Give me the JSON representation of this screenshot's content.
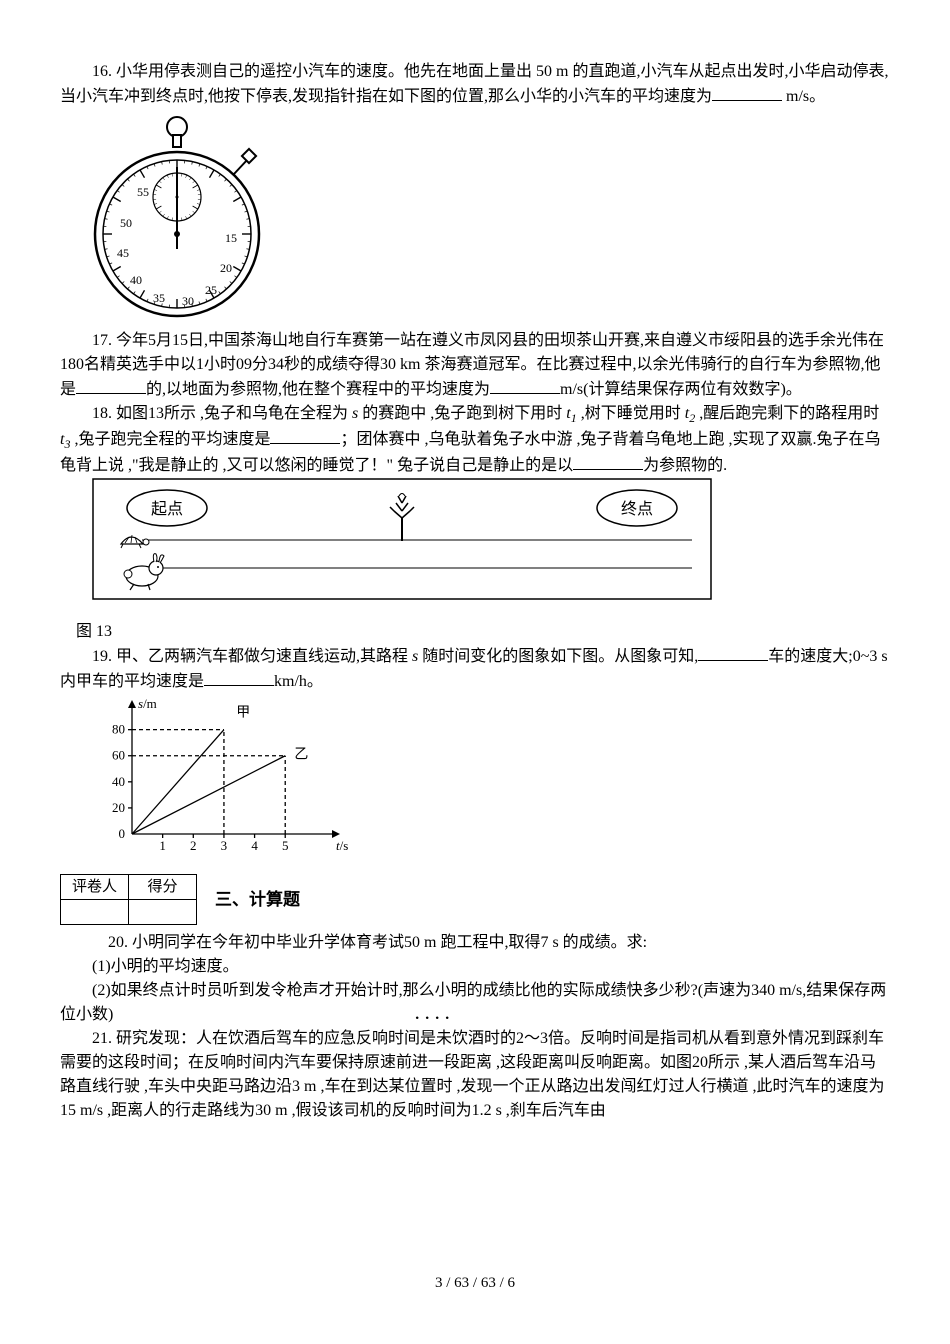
{
  "q16": {
    "text1": "16. 小华用停表测自己的遥控小汽车的速度。他先在地面上量出 50 m 的直跑道,小汽车从起点出发时,小华启动停表,当小汽车冲到终点时,他按下停表,发现指针指在如下图的位置,那么小华的小汽车的平均速度为",
    "text2": "m/s。"
  },
  "stopwatch": {
    "bg": "#ffffff",
    "stroke": "#000000",
    "small_ticks": [
      "55",
      "50",
      "45",
      "40",
      "35",
      "30",
      "25",
      "20",
      "15"
    ],
    "font_size": 12
  },
  "q17": {
    "text1": "17. 今年5月15日,中国茶海山地自行车赛第一站在遵义市凤冈县的田坝茶山开赛,来自遵义市绥阳县的选手余光伟在180名精英选手中以1小时09分34秒的成绩夺得30 km 茶海赛道冠军。在比赛过程中,以余光伟骑行的自行车为参照物,他是",
    "text2": "的,以地面为参照物,他在整个赛程中的平均速度为",
    "text3": "m/s(计算结果保存两位有效数字)。"
  },
  "q18": {
    "text1": "18. 如图13所示 ,兔子和乌龟在全程为",
    "text2": "的赛跑中 ,兔子跑到树下用时",
    "text3": ",树下睡觉用时",
    "text4": ",醒后跑完剩下的路程用时",
    "text5": ",兔子跑完全程的平均速度是",
    "text6": "；团体赛中 ,乌龟驮着兔子水中游 ,兔子背着乌龟地上跑 ,实现了双赢.兔子在乌龟背上说 ,\"我是静止的 ,又可以悠闲的睡觉了！\" 兔子说自己是静止的是以",
    "text7": "为参照物的.",
    "fig_label": "图 13",
    "start_label": "起点",
    "end_label": "终点"
  },
  "q19": {
    "text1": "19. 甲、乙两辆汽车都做匀速直线运动,其路程",
    "text2": "随时间变化的图象如下图。从图象可知,",
    "text3": "车的速度大;0~3 s 内甲车的平均速度是",
    "text4": "km/h。",
    "chart": {
      "type": "line",
      "x_label": "t/s",
      "y_label": "s/m",
      "x_ticks": [
        1,
        2,
        3,
        4,
        5
      ],
      "y_ticks": [
        20,
        40,
        60,
        80
      ],
      "xlim": [
        0,
        6.2
      ],
      "ylim": [
        0,
        92
      ],
      "series": [
        {
          "name": "甲",
          "points": [
            [
              0,
              0
            ],
            [
              3,
              80
            ]
          ],
          "label_pos": [
            3.4,
            90
          ]
        },
        {
          "name": "乙",
          "points": [
            [
              0,
              0
            ],
            [
              5,
              60
            ]
          ],
          "label_pos": [
            5.3,
            58
          ]
        }
      ],
      "dashed": [
        {
          "from": [
            0,
            80
          ],
          "to": [
            3,
            80
          ]
        },
        {
          "from": [
            3,
            0
          ],
          "to": [
            3,
            80
          ]
        },
        {
          "from": [
            0,
            60
          ],
          "to": [
            5,
            60
          ]
        },
        {
          "from": [
            5,
            0
          ],
          "to": [
            5,
            60
          ]
        }
      ],
      "stroke": "#000000",
      "font_size": 13
    }
  },
  "section3": {
    "grader": "评卷人",
    "score": "得分",
    "title": "三、计算题"
  },
  "q20": {
    "text1": "20. 小明同学在今年初中毕业升学体育考试50 m 跑工程中,取得7 s 的成绩。求:",
    "sub1": "(1)小明的平均速度。",
    "sub2": "(2)如果终点计时员听到发令枪声才开始计时,那么小明的成绩比他的实际成绩快多少秒?(声速为340 m/s,结果保存两位小数)"
  },
  "q21": {
    "text1": "21. 研究发现：人在饮酒后驾车的应急反响时间是未饮酒时的2～3倍。反响时间是指司机从看到意外情况到踩刹车需要的这段时间；在反响时间内汽车要保持原速前进一段距离 ,这段距离叫反响距离。如图20所示 ,某人酒后驾车沿马路直线行驶 ,车头中央距马路边沿3 m ,车在到达某位置时 ,发现一个正从路边出发闯红灯过人行横道 ,此时汽车的速度为15 m/s ,距离人的行走路线为30 m ,假设该司机的反响时间为1.2 s ,刹车后汽车由"
  },
  "footer": "3 / 63 / 63 / 6"
}
